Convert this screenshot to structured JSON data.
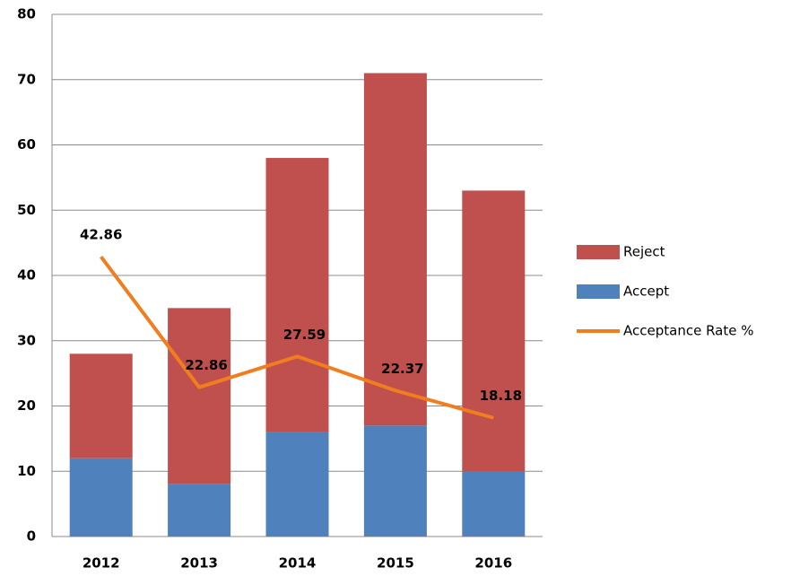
{
  "chart_data": {
    "type": "bar",
    "stacked": true,
    "categories": [
      "2012",
      "2013",
      "2014",
      "2015",
      "2016"
    ],
    "series": [
      {
        "name": "Accept",
        "type": "bar",
        "color": "#4f81bd",
        "values": [
          12,
          8,
          16,
          17,
          10
        ]
      },
      {
        "name": "Reject",
        "type": "bar",
        "color": "#c0504d",
        "values": [
          16,
          27,
          42,
          54,
          43
        ]
      },
      {
        "name": "Acceptance Rate %",
        "type": "line",
        "color": "#f07d1e",
        "values": [
          42.86,
          22.86,
          27.59,
          22.37,
          18.18
        ]
      }
    ],
    "ylim": [
      0,
      80
    ],
    "yticks": [
      0,
      10,
      20,
      30,
      40,
      50,
      60,
      70,
      80
    ],
    "grid": true,
    "legend": "right"
  }
}
